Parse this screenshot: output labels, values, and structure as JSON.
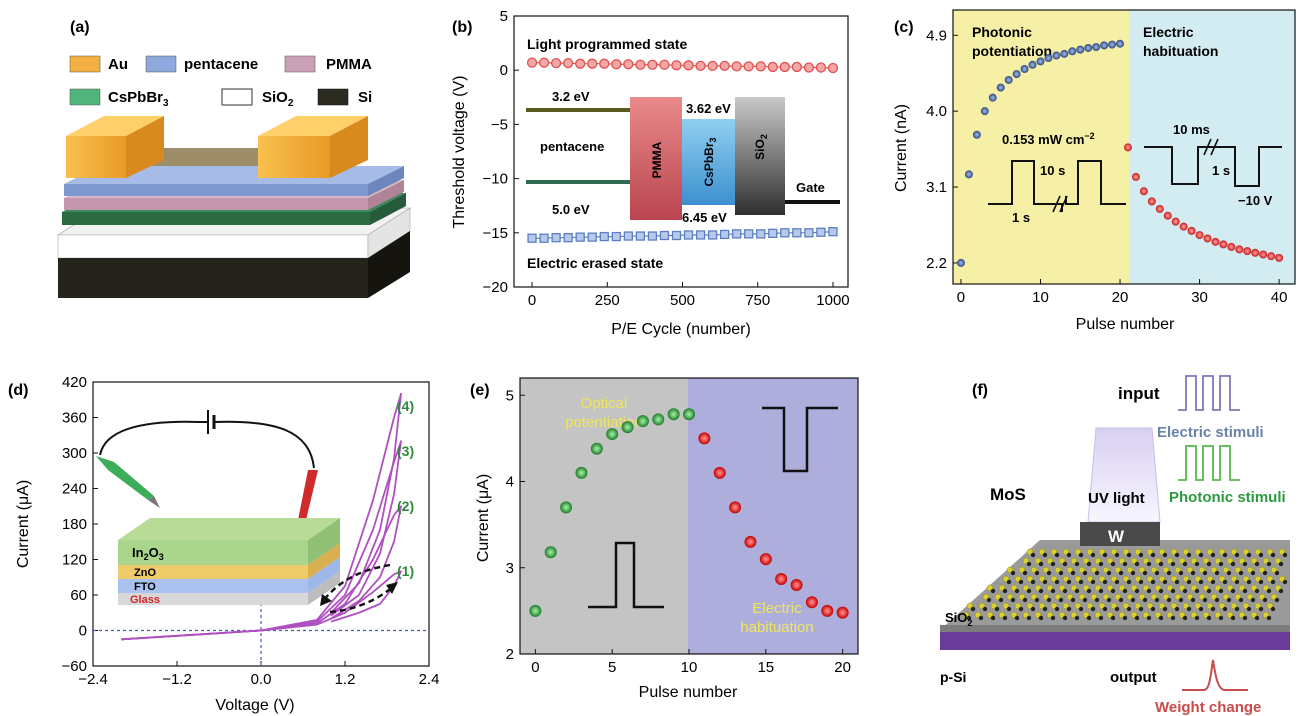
{
  "panels": {
    "a": {
      "label": "(a)",
      "legend": [
        {
          "name": "Au",
          "color": "#f4b043"
        },
        {
          "name": "pentacene",
          "color": "#8ea9dc"
        },
        {
          "name": "PMMA",
          "color": "#c9a0b6"
        },
        {
          "name": "CsPbBr3",
          "color": "#4fb57a"
        },
        {
          "name": "SiO2",
          "color": "#ffffff"
        },
        {
          "name": "Si",
          "color": "#2b2b22"
        }
      ]
    },
    "b": {
      "label": "(b)",
      "inset": {
        "labels": {
          "e32": "3.2 eV",
          "pentacene": "pentacene",
          "e50": "5.0 eV",
          "pmma": "PMMA",
          "cspbbr3": "CsPbBr3",
          "sio2": "SiO2",
          "e362": "3.62 eV",
          "e645": "6.45 eV",
          "gate": "Gate"
        }
      }
    },
    "c": {
      "label": "(c)",
      "annotations": {
        "region1": "Photonic potentiation",
        "region2": "Electric habituation",
        "power": "0.153 mW cm−2",
        "t10s": "10 s",
        "t1s_left": "1 s",
        "t10ms": "10 ms",
        "t1s_right": "1 s",
        "v10": "−10 V"
      }
    },
    "d": {
      "label": "(d)",
      "device_layers": [
        "In2O3",
        "ZnO",
        "FTO",
        "Glass"
      ],
      "loop_labels": [
        "(1)",
        "(2)",
        "(3)",
        "(4)"
      ]
    },
    "e": {
      "label": "(e)",
      "annotations": {
        "optical": "Optical potentiation",
        "electric": "Electric habituation"
      }
    },
    "f": {
      "label": "(f)",
      "labels": {
        "input": "input",
        "electric": "Electric stimuli",
        "photonic": "Photonic stimuli",
        "mos": "MoS",
        "uv": "UV light",
        "w": "W",
        "sio2": "SiO2",
        "psi": "p-Si",
        "output": "output",
        "weight": "Weight change"
      }
    }
  },
  "chart_data": [
    {
      "id": "b",
      "type": "scatter",
      "xlabel": "P/E Cycle (number)",
      "ylabel": "Threshold voltage (V)",
      "xlim": [
        -60,
        1050
      ],
      "ylim": [
        -20,
        5
      ],
      "xticks": [
        0,
        250,
        500,
        750,
        1000
      ],
      "yticks": [
        5,
        0,
        -5,
        -10,
        -15,
        -20
      ],
      "series": [
        {
          "name": "Light programmed state",
          "color": "#e0504f",
          "x": [
            0,
            40,
            80,
            120,
            160,
            200,
            240,
            280,
            320,
            360,
            400,
            440,
            480,
            520,
            560,
            600,
            640,
            680,
            720,
            760,
            800,
            840,
            880,
            920,
            960,
            1000
          ],
          "values": [
            0.7,
            0.7,
            0.65,
            0.65,
            0.6,
            0.6,
            0.6,
            0.55,
            0.55,
            0.5,
            0.5,
            0.5,
            0.45,
            0.45,
            0.4,
            0.4,
            0.4,
            0.35,
            0.35,
            0.35,
            0.3,
            0.3,
            0.3,
            0.25,
            0.25,
            0.2
          ]
        },
        {
          "name": "Electric erased state",
          "color": "#5b7fc2",
          "x": [
            0,
            40,
            80,
            120,
            160,
            200,
            240,
            280,
            320,
            360,
            400,
            440,
            480,
            520,
            560,
            600,
            640,
            680,
            720,
            760,
            800,
            840,
            880,
            920,
            960,
            1000
          ],
          "values": [
            -15.5,
            -15.5,
            -15.45,
            -15.45,
            -15.4,
            -15.4,
            -15.35,
            -15.35,
            -15.3,
            -15.3,
            -15.3,
            -15.25,
            -15.25,
            -15.2,
            -15.2,
            -15.2,
            -15.15,
            -15.1,
            -15.1,
            -15.1,
            -15.05,
            -15.0,
            -15.0,
            -15.0,
            -14.95,
            -14.9
          ]
        }
      ]
    },
    {
      "id": "c",
      "type": "scatter",
      "xlabel": "Pulse number",
      "ylabel": "Current (nA)",
      "xlim": [
        -1,
        42
      ],
      "ylim": [
        1.95,
        5.2
      ],
      "xticks": [
        0,
        10,
        20,
        30,
        40
      ],
      "yticks": [
        2.2,
        3.1,
        4.0,
        4.9
      ],
      "series": [
        {
          "name": "potentiation",
          "color": "#3f5f9a",
          "x": [
            0,
            1,
            2,
            3,
            4,
            5,
            6,
            7,
            8,
            9,
            10,
            11,
            12,
            13,
            14,
            15,
            16,
            17,
            18,
            19,
            20
          ],
          "values": [
            2.2,
            3.25,
            3.72,
            4.0,
            4.16,
            4.28,
            4.37,
            4.44,
            4.5,
            4.55,
            4.59,
            4.63,
            4.66,
            4.68,
            4.71,
            4.73,
            4.75,
            4.76,
            4.78,
            4.79,
            4.8
          ]
        },
        {
          "name": "habituation",
          "color": "#e03333",
          "x": [
            21,
            22,
            23,
            24,
            25,
            26,
            27,
            28,
            29,
            30,
            31,
            32,
            33,
            34,
            35,
            36,
            37,
            38,
            39,
            40
          ],
          "values": [
            3.57,
            3.22,
            3.05,
            2.93,
            2.84,
            2.76,
            2.69,
            2.63,
            2.58,
            2.53,
            2.49,
            2.45,
            2.42,
            2.39,
            2.36,
            2.34,
            2.32,
            2.3,
            2.28,
            2.26
          ]
        }
      ]
    },
    {
      "id": "d",
      "type": "line",
      "xlabel": "Voltage (V)",
      "ylabel": "Current (μA)",
      "xlim": [
        -2.4,
        2.4
      ],
      "ylim": [
        -60,
        420
      ],
      "xticks": [
        -2.4,
        -1.2,
        0.0,
        1.2,
        2.4
      ],
      "yticks": [
        -60,
        0,
        60,
        120,
        180,
        240,
        300,
        360,
        420
      ],
      "series": [
        {
          "name": "(1)",
          "x": [
            -2.0,
            0.0,
            0.8,
            1.2,
            1.6,
            1.9,
            2.0,
            1.9,
            1.7,
            1.4,
            1.0
          ],
          "values": [
            -15,
            0,
            10,
            30,
            65,
            95,
            100,
            75,
            45,
            30,
            15
          ]
        },
        {
          "name": "(2)",
          "x": [
            -2.0,
            0.0,
            0.8,
            1.2,
            1.6,
            1.9,
            2.0,
            1.9,
            1.7,
            1.4,
            1.0
          ],
          "values": [
            -15,
            0,
            12,
            45,
            120,
            195,
            210,
            150,
            90,
            50,
            20
          ]
        },
        {
          "name": "(3)",
          "x": [
            -2.0,
            0.0,
            0.8,
            1.2,
            1.6,
            1.9,
            2.0,
            1.9,
            1.7,
            1.4,
            1.0
          ],
          "values": [
            -15,
            0,
            15,
            60,
            170,
            285,
            320,
            230,
            130,
            60,
            25
          ]
        },
        {
          "name": "(4)",
          "x": [
            -2.0,
            0.0,
            0.8,
            1.2,
            1.6,
            1.9,
            2.0,
            1.9,
            1.7,
            1.4,
            1.0
          ],
          "values": [
            -15,
            0,
            18,
            75,
            220,
            360,
            400,
            290,
            170,
            80,
            30
          ]
        }
      ]
    },
    {
      "id": "e",
      "type": "scatter",
      "xlabel": "Pulse number",
      "ylabel": "Current (μA)",
      "xlim": [
        -1,
        21
      ],
      "ylim": [
        2,
        5.2
      ],
      "xticks": [
        0,
        5,
        10,
        15,
        20
      ],
      "yticks": [
        2,
        3,
        4,
        5
      ],
      "series": [
        {
          "name": "potentiation",
          "color": "#2e9a3e",
          "x": [
            0,
            1,
            2,
            3,
            4,
            5,
            6,
            7,
            8,
            9,
            10
          ],
          "values": [
            2.5,
            3.18,
            3.7,
            4.1,
            4.38,
            4.55,
            4.63,
            4.7,
            4.72,
            4.78,
            4.78
          ]
        },
        {
          "name": "habituation",
          "color": "#e02222",
          "x": [
            11,
            12,
            13,
            14,
            15,
            16,
            17,
            18,
            19,
            20
          ],
          "values": [
            4.5,
            4.1,
            3.7,
            3.3,
            3.1,
            2.87,
            2.8,
            2.6,
            2.5,
            2.48
          ]
        }
      ]
    }
  ]
}
